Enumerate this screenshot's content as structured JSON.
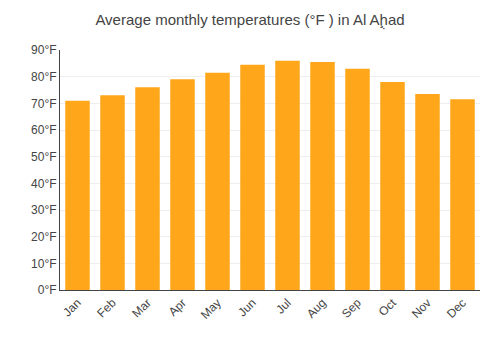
{
  "chart_data": {
    "type": "bar",
    "title": "Average monthly temperatures (°F ) in Al Aḩ̣ad",
    "categories": [
      "Jan",
      "Feb",
      "Mar",
      "Apr",
      "May",
      "Jun",
      "Jul",
      "Aug",
      "Sep",
      "Oct",
      "Nov",
      "Dec"
    ],
    "values": [
      71,
      73,
      76,
      79,
      81.5,
      84.5,
      86,
      85.5,
      83,
      78,
      73.5,
      71.5
    ],
    "color": "#FFA61A",
    "ylim": [
      0,
      90
    ],
    "yticks": [
      {
        "value": 0,
        "label": "0°F"
      },
      {
        "value": 10,
        "label": "10°F"
      },
      {
        "value": 20,
        "label": "20°F"
      },
      {
        "value": 30,
        "label": "30°F"
      },
      {
        "value": 40,
        "label": "40°F"
      },
      {
        "value": 50,
        "label": "50°F"
      },
      {
        "value": 60,
        "label": "60°F"
      },
      {
        "value": 70,
        "label": "70°F"
      },
      {
        "value": 80,
        "label": "80°F"
      },
      {
        "value": 90,
        "label": "90°F"
      }
    ],
    "grid": true
  }
}
